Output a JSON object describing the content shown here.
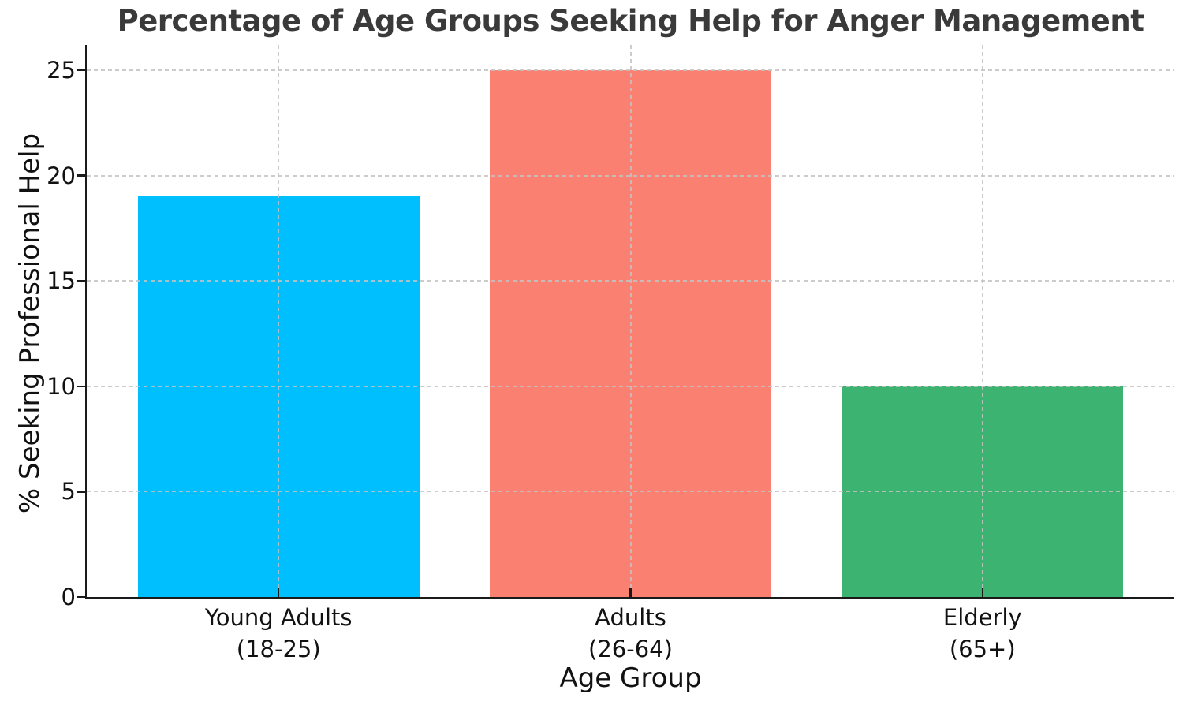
{
  "chart_data": {
    "type": "bar",
    "title": "Percentage of Age Groups Seeking Help for Anger Management",
    "xlabel": "Age Group",
    "ylabel": "% Seeking Professional Help",
    "categories": [
      "Young Adults\n(18-25)",
      "Adults\n(26-64)",
      "Elderly\n(65+)"
    ],
    "values": [
      19,
      25,
      10
    ],
    "bar_colors": [
      "#00BFFF",
      "#FA8072",
      "#3CB371"
    ],
    "yticks": [
      0,
      5,
      10,
      15,
      20,
      25
    ],
    "ylim": [
      0,
      26.2
    ],
    "xlim": [
      -0.545,
      2.545
    ],
    "bar_width": 0.8,
    "grid": "both, dashed, drawn over bars",
    "legend": "none",
    "spines": "left and bottom only"
  },
  "style": {
    "background": "#ffffff",
    "title_color": "#3a3a3a",
    "axis_color": "#1a1a1a",
    "grid_color": "#c3c3c3",
    "text_color": "#111111"
  }
}
